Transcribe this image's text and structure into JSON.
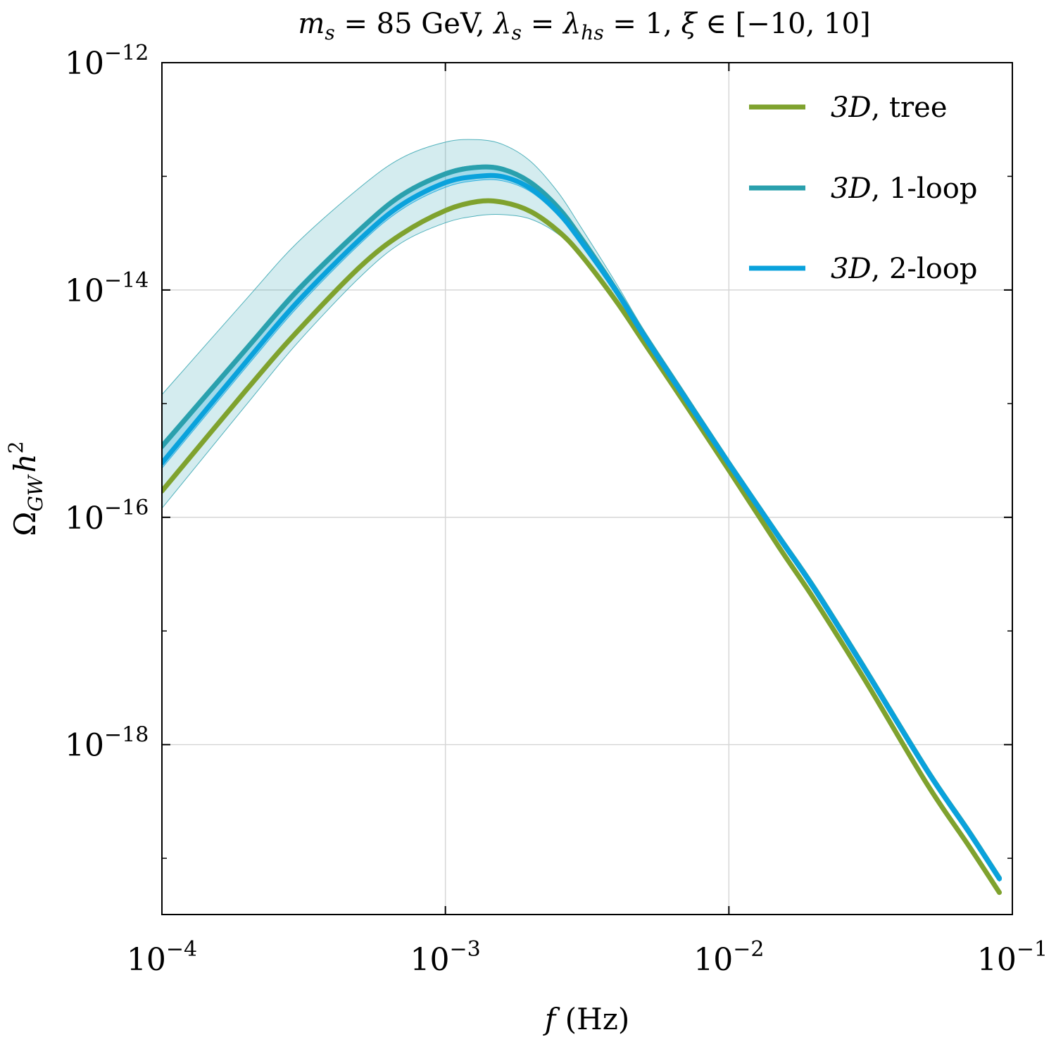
{
  "chart_data": {
    "type": "line",
    "title": "m_s = 85 GeV, λ_s = λ_hs = 1, ξ ∈ [−10, 10]",
    "title_parts": {
      "m": "m",
      "s_sub": "s",
      "mass_value": " = 85 GeV, ",
      "lambda": "λ",
      "s_sub2": "s",
      "eq": " = ",
      "lambda2": "λ",
      "hs_sub": "hs",
      "tail": " = 1, ",
      "xi": "ξ",
      "range": " ∈ [−10, 10]"
    },
    "xlabel": "f (Hz)",
    "xlabel_parts": {
      "var": "f",
      "unit": " (Hz)"
    },
    "ylabel": "Ω_GW h^2",
    "ylabel_parts": {
      "omega": "Ω",
      "sub": "GW",
      "h": "h",
      "sup": "2"
    },
    "xscale": "log",
    "yscale": "log",
    "xlim": [
      0.0001,
      0.1
    ],
    "ylim": [
      3.2e-20,
      1e-12
    ],
    "grid": true,
    "legend_position": "top-right",
    "x_ticks": [
      {
        "value": 0.0001,
        "base": "10",
        "exp": "−4"
      },
      {
        "value": 0.001,
        "base": "10",
        "exp": "−3"
      },
      {
        "value": 0.01,
        "base": "10",
        "exp": "−2"
      },
      {
        "value": 0.1,
        "base": "10",
        "exp": "−1"
      }
    ],
    "y_ticks": [
      {
        "value": 1e-12,
        "base": "10",
        "exp": "−12"
      },
      {
        "value": 1e-14,
        "base": "10",
        "exp": "−14"
      },
      {
        "value": 1e-16,
        "base": "10",
        "exp": "−16"
      },
      {
        "value": 1e-18,
        "base": "10",
        "exp": "−18"
      }
    ],
    "y_minor_ticks": [
      1e-13,
      1e-15,
      1e-17,
      1e-19
    ],
    "x": [
      0.0001,
      0.0002,
      0.0003,
      0.0005,
      0.0007,
      0.001,
      0.0013,
      0.0016,
      0.002,
      0.0025,
      0.003,
      0.004,
      0.005,
      0.007,
      0.01,
      0.015,
      0.02,
      0.03,
      0.05,
      0.07,
      0.09
    ],
    "series": [
      {
        "name": "3D, tree",
        "label_var": "3D",
        "label_rest": ", tree",
        "color": "#7fa22e",
        "values": [
          1.7e-16,
          1.35e-15,
          4.3e-15,
          1.6e-14,
          3.1e-14,
          5e-14,
          6e-14,
          5.9e-14,
          4.9e-14,
          3.3e-14,
          2.05e-14,
          8e-15,
          3.5e-15,
          1e-15,
          2.6e-16,
          5.5e-17,
          1.9e-17,
          3.8e-18,
          4.5e-19,
          1.3e-19,
          5e-20
        ]
      },
      {
        "name": "3D, 1-loop",
        "label_var": "3D",
        "label_rest": ", 1-loop",
        "color": "#2aa0ad",
        "band": true,
        "values": [
          4.2e-16,
          3.1e-15,
          9.8e-15,
          3.4e-14,
          6.8e-14,
          1.05e-13,
          1.2e-13,
          1.15e-13,
          8.8e-14,
          5.3e-14,
          2.9e-14,
          1e-14,
          4.1e-15,
          1.15e-15,
          3e-16,
          6.8e-17,
          2.4e-17,
          4.8e-18,
          6e-19,
          1.75e-19,
          6.7e-20
        ],
        "band_lower": [
          1.2e-16,
          1e-15,
          3.4e-15,
          1.3e-14,
          2.6e-14,
          3.9e-14,
          4.5e-14,
          4.6e-14,
          4.2e-14,
          3.1e-14,
          2e-14,
          8e-15,
          3.6e-15,
          1.05e-15,
          2.75e-16,
          6.2e-17,
          2.2e-17,
          4.5e-18,
          5.6e-19,
          1.65e-19,
          6.3e-20
        ],
        "band_upper": [
          1.2e-15,
          8.5e-15,
          2.6e-14,
          8e-14,
          1.45e-13,
          2e-13,
          2.1e-13,
          1.9e-13,
          1.35e-13,
          7.2e-14,
          3.6e-14,
          1.15e-14,
          4.5e-15,
          1.25e-15,
          3.2e-16,
          7.2e-17,
          2.5e-17,
          5e-18,
          6.3e-19,
          1.85e-19,
          7e-20
        ]
      },
      {
        "name": "3D, 2-loop",
        "label_var": "3D",
        "label_rest": ", 2-loop",
        "color": "#0aa2dc",
        "band": true,
        "values": [
          3e-16,
          2.4e-15,
          7.8e-15,
          2.8e-14,
          5.6e-14,
          8.8e-14,
          1e-13,
          9.9e-14,
          7.8e-14,
          4.8e-14,
          2.7e-14,
          9.8e-15,
          4e-15,
          1.12e-15,
          2.95e-16,
          6.7e-17,
          2.35e-17,
          4.7e-18,
          5.9e-19,
          1.72e-19,
          6.6e-20
        ],
        "band_lower": [
          2.7e-16,
          2.15e-15,
          7e-15,
          2.55e-14,
          5.1e-14,
          8e-14,
          9.2e-14,
          9.1e-14,
          7.3e-14,
          4.5e-14,
          2.55e-14,
          9.4e-15,
          3.9e-15,
          1.1e-15,
          2.9e-16,
          6.6e-17,
          2.3e-17,
          4.65e-18,
          5.85e-19,
          1.7e-19,
          6.5e-20
        ],
        "band_upper": [
          4.5e-16,
          3.3e-15,
          1.05e-14,
          3.6e-14,
          7.1e-14,
          1.1e-13,
          1.25e-13,
          1.2e-13,
          9.1e-14,
          5.5e-14,
          3e-14,
          1.02e-14,
          4.15e-15,
          1.16e-15,
          3.02e-16,
          6.85e-17,
          2.4e-17,
          4.8e-18,
          6e-19,
          1.76e-19,
          6.75e-20
        ]
      }
    ]
  }
}
